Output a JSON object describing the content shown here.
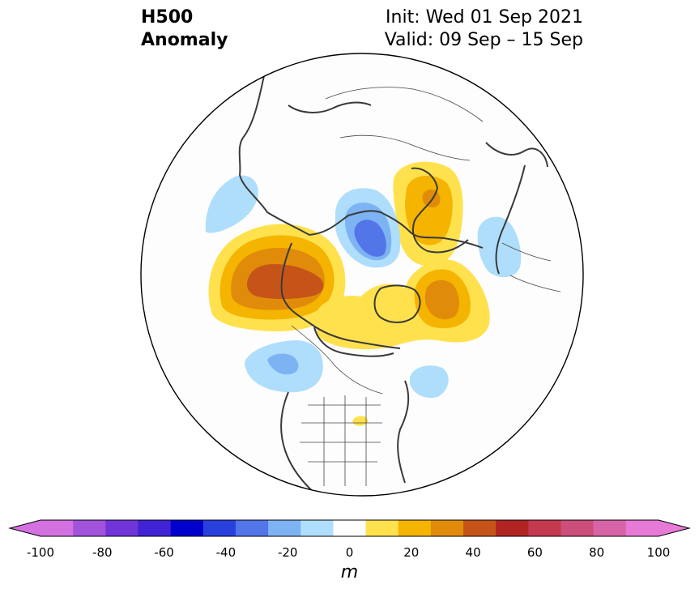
{
  "title": {
    "left_line1": "H500",
    "left_line2": "Anomaly",
    "right_line1": "Init: Wed 01 Sep 2021",
    "right_line2": "Valid: 09 Sep – 15 Sep"
  },
  "colorbar": {
    "units": "m",
    "ticks": [
      "-100",
      "-80",
      "-60",
      "-40",
      "-20",
      "0",
      "20",
      "40",
      "60",
      "80",
      "100"
    ],
    "levels": [
      -100,
      -90,
      -80,
      -70,
      -60,
      -50,
      -40,
      -30,
      -20,
      -10,
      10,
      20,
      30,
      40,
      50,
      60,
      70,
      80,
      90,
      100
    ],
    "colors": [
      "#d371e0",
      "#a253dc",
      "#7034d8",
      "#4024d4",
      "#0000cd",
      "#2a40dd",
      "#5275e8",
      "#7db3f3",
      "#aedefb",
      "#ffffff",
      "#ffe14d",
      "#f4b400",
      "#e08c0a",
      "#c65418",
      "#b02424",
      "#c5394e",
      "#cc4e7a",
      "#d864a8",
      "#e67ad6"
    ],
    "under_color": "#d371e0",
    "over_color": "#e67ad6"
  },
  "map": {
    "projection": "north-polar-stereographic",
    "anomaly_centers": [
      {
        "region": "Gulf of Alaska / NE Pacific",
        "sign": "positive",
        "peak_m": 45
      },
      {
        "region": "East Siberian / Laptev area",
        "sign": "negative",
        "peak_m": -35
      },
      {
        "region": "Scandinavia / Barents",
        "sign": "positive",
        "peak_m": 40
      },
      {
        "region": "Greenland",
        "sign": "positive",
        "peak_m": 40
      },
      {
        "region": "Canadian Archipelago",
        "sign": "positive",
        "peak_m": 20
      },
      {
        "region": "Western Russia",
        "sign": "negative",
        "peak_m": -15
      },
      {
        "region": "NE Pacific off British Columbia",
        "sign": "negative",
        "peak_m": -25
      },
      {
        "region": "Labrador",
        "sign": "negative",
        "peak_m": -15
      },
      {
        "region": "Eastern Siberia / Sea of Okhotsk",
        "sign": "negative",
        "peak_m": -15
      },
      {
        "region": "Great Lakes",
        "sign": "positive",
        "peak_m": 15
      }
    ]
  }
}
